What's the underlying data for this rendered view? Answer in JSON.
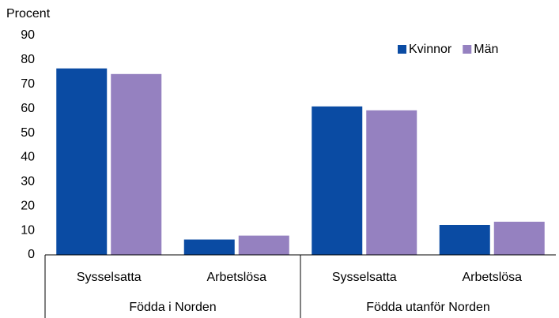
{
  "chart_data": {
    "type": "bar",
    "y_label": "Procent",
    "categories": [
      "Sysselsatta",
      "Arbetslösa",
      "Sysselsatta",
      "Arbetslösa"
    ],
    "groups": [
      "Födda i Norden",
      "Födda utanför Norden"
    ],
    "series": [
      {
        "name": "Kvinnor",
        "color": "#0a4ba3",
        "values": [
          76.5,
          6.3,
          60.9,
          12.3
        ]
      },
      {
        "name": "Män",
        "color": "#9581c0",
        "values": [
          74.2,
          7.9,
          59.3,
          13.6
        ]
      }
    ],
    "ylim": [
      0,
      90
    ],
    "yticks": [
      0,
      10,
      20,
      30,
      40,
      50,
      60,
      70,
      80,
      90
    ],
    "grid": false,
    "legend": "top-right"
  }
}
